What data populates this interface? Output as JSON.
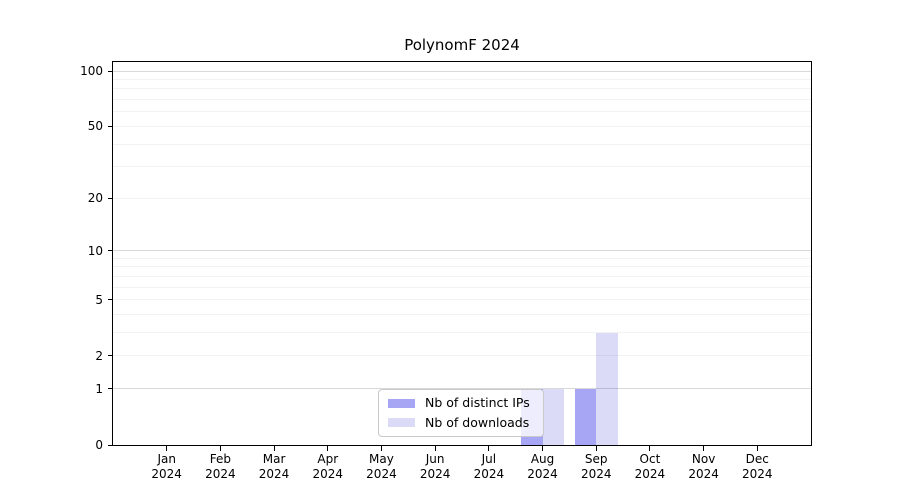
{
  "chart_data": {
    "type": "bar",
    "title": "PolynomF 2024",
    "categories": [
      {
        "month": "Jan",
        "year": "2024"
      },
      {
        "month": "Feb",
        "year": "2024"
      },
      {
        "month": "Mar",
        "year": "2024"
      },
      {
        "month": "Apr",
        "year": "2024"
      },
      {
        "month": "May",
        "year": "2024"
      },
      {
        "month": "Jun",
        "year": "2024"
      },
      {
        "month": "Jul",
        "year": "2024"
      },
      {
        "month": "Aug",
        "year": "2024"
      },
      {
        "month": "Sep",
        "year": "2024"
      },
      {
        "month": "Oct",
        "year": "2024"
      },
      {
        "month": "Nov",
        "year": "2024"
      },
      {
        "month": "Dec",
        "year": "2024"
      }
    ],
    "series": [
      {
        "name": "Nb of distinct IPs",
        "color": "rgba(43,43,230,0.42)",
        "values": [
          0,
          0,
          0,
          0,
          0,
          0,
          0,
          1,
          1,
          0,
          0,
          0
        ]
      },
      {
        "name": "Nb of downloads",
        "color": "rgba(15,15,202,0.15)",
        "values": [
          0,
          0,
          0,
          0,
          0,
          0,
          0,
          1,
          3,
          0,
          0,
          0
        ]
      }
    ],
    "y_axis": {
      "scale": "log1p",
      "lim": [
        0,
        100
      ],
      "ticks": [
        0,
        1,
        2,
        5,
        10,
        20,
        50,
        100
      ],
      "minor_gridlines": [
        2,
        3,
        4,
        5,
        6,
        7,
        8,
        9,
        20,
        30,
        40,
        50,
        60,
        70,
        80,
        90
      ],
      "major_gridlines": [
        1,
        10,
        100
      ]
    },
    "grid": "horizontal",
    "legend_position": "lower-center, overlapping Aug bars",
    "colors": {
      "grid_minor": "#f2f2f2",
      "grid_major": "#d9d9d9",
      "axis": "#000000"
    }
  }
}
